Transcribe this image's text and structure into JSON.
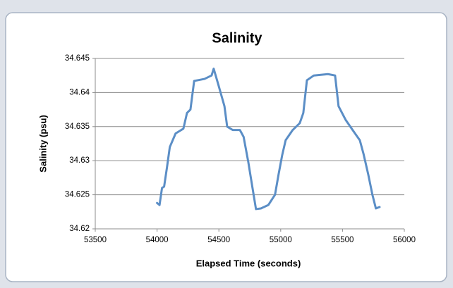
{
  "chart_data": {
    "type": "line",
    "title": "Salinity",
    "x_label": "Elapsed Time (seconds)",
    "y_label": "Salinity (psu)",
    "x": [
      54000,
      54020,
      54040,
      54057,
      54080,
      54103,
      54150,
      54213,
      54242,
      54270,
      54300,
      54384,
      54441,
      54458,
      54498,
      54545,
      54567,
      54612,
      54670,
      54700,
      54738,
      54772,
      54800,
      54840,
      54900,
      54954,
      54983,
      55012,
      55040,
      55097,
      55154,
      55183,
      55212,
      55268,
      55382,
      55440,
      55468,
      55525,
      55582,
      55640,
      55670,
      55708,
      55742,
      55770,
      55800
    ],
    "values": [
      34.6238,
      34.6235,
      34.626,
      34.6262,
      34.629,
      34.632,
      34.634,
      34.6347,
      34.637,
      34.6375,
      34.6417,
      34.642,
      34.6425,
      34.6435,
      34.641,
      34.638,
      34.635,
      34.6345,
      34.6345,
      34.6335,
      34.6298,
      34.626,
      34.6229,
      34.623,
      34.6235,
      34.625,
      34.628,
      34.6308,
      34.633,
      34.6345,
      34.6355,
      34.637,
      34.6418,
      34.6425,
      34.6427,
      34.6425,
      34.638,
      34.636,
      34.6345,
      34.633,
      34.631,
      34.628,
      34.625,
      34.623,
      34.6232
    ],
    "color": "#5b8ec6",
    "xlim": [
      53500,
      56000
    ],
    "xticks": [
      53500,
      54000,
      54500,
      55000,
      55500,
      56000
    ],
    "ylim": [
      34.62,
      34.645
    ],
    "yticks": [
      34.62,
      34.625,
      34.63,
      34.635,
      34.64,
      34.645
    ],
    "grid": true
  }
}
